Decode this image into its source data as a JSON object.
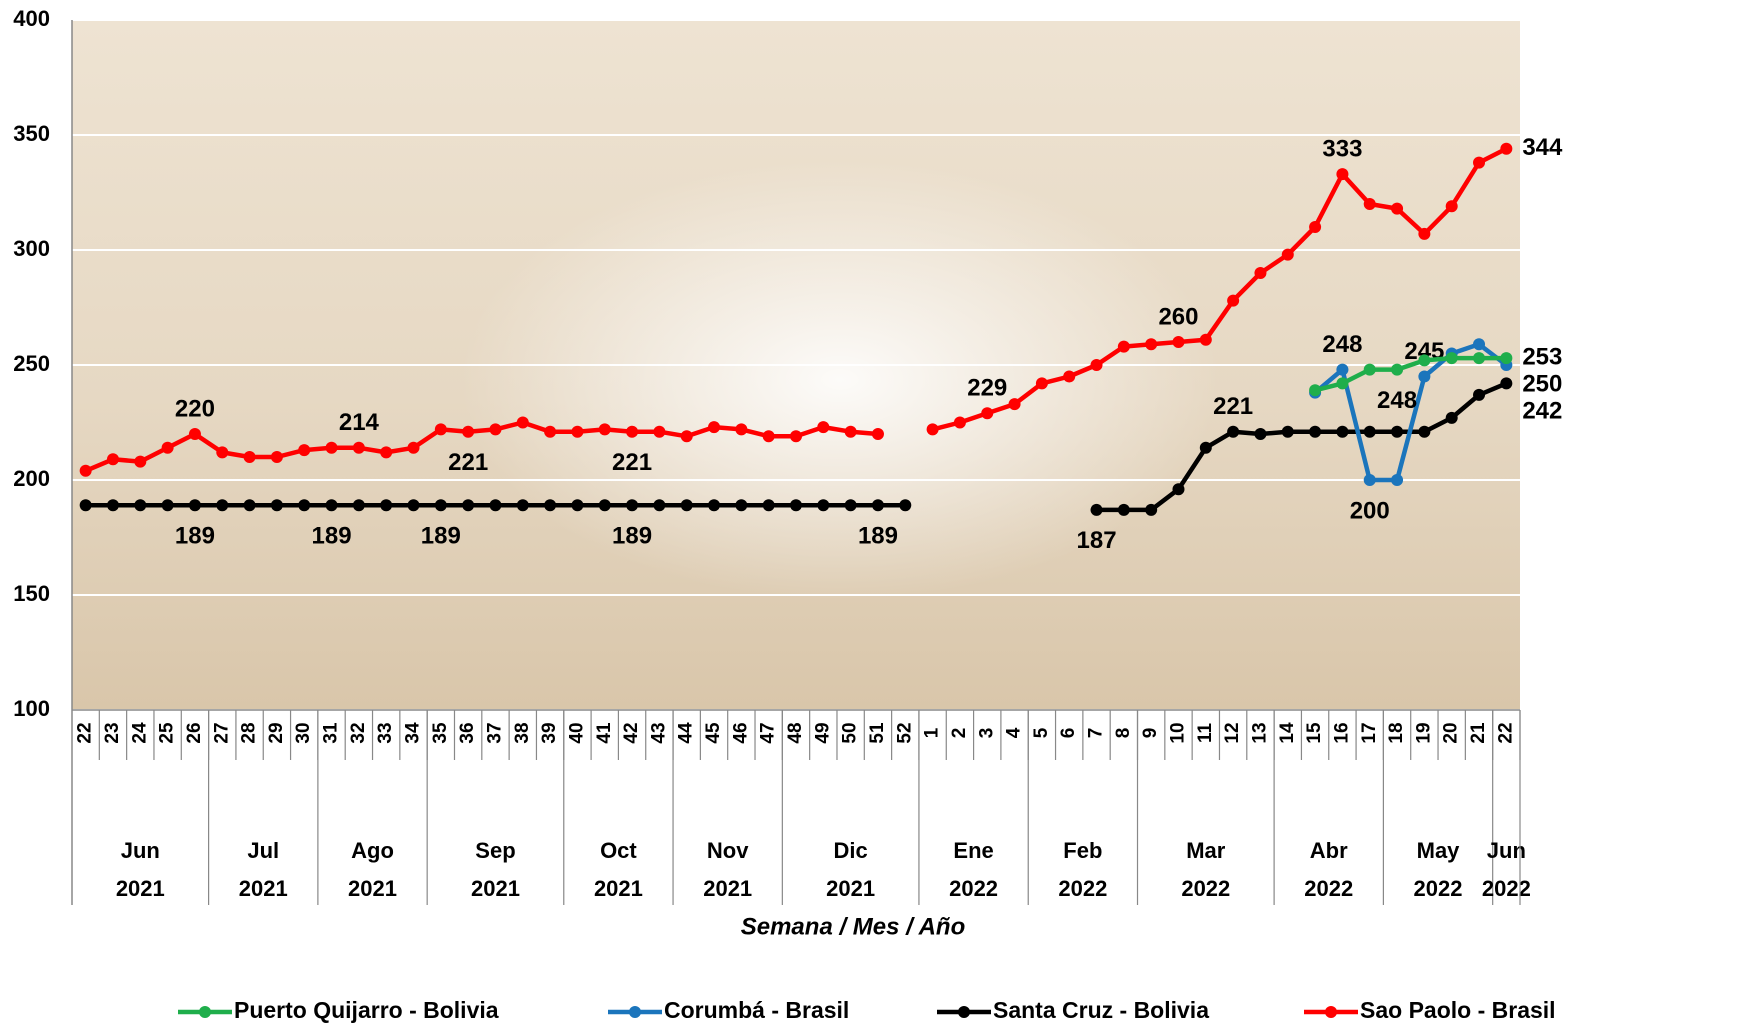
{
  "chart_data": {
    "type": "line",
    "x_label": "Semana / Mes / Año",
    "categories": [
      [
        "22",
        "Jun",
        "2021"
      ],
      [
        "23",
        "Jun",
        "2021"
      ],
      [
        "24",
        "Jun",
        "2021"
      ],
      [
        "25",
        "Jun",
        "2021"
      ],
      [
        "26",
        "Jun",
        "2021"
      ],
      [
        "27",
        "Jul",
        "2021"
      ],
      [
        "28",
        "Jul",
        "2021"
      ],
      [
        "29",
        "Jul",
        "2021"
      ],
      [
        "30",
        "Jul",
        "2021"
      ],
      [
        "31",
        "Ago",
        "2021"
      ],
      [
        "32",
        "Ago",
        "2021"
      ],
      [
        "33",
        "Ago",
        "2021"
      ],
      [
        "34",
        "Ago",
        "2021"
      ],
      [
        "35",
        "Sep",
        "2021"
      ],
      [
        "36",
        "Sep",
        "2021"
      ],
      [
        "37",
        "Sep",
        "2021"
      ],
      [
        "38",
        "Sep",
        "2021"
      ],
      [
        "39",
        "Sep",
        "2021"
      ],
      [
        "40",
        "Oct",
        "2021"
      ],
      [
        "41",
        "Oct",
        "2021"
      ],
      [
        "42",
        "Oct",
        "2021"
      ],
      [
        "43",
        "Oct",
        "2021"
      ],
      [
        "44",
        "Nov",
        "2021"
      ],
      [
        "45",
        "Nov",
        "2021"
      ],
      [
        "46",
        "Nov",
        "2021"
      ],
      [
        "47",
        "Nov",
        "2021"
      ],
      [
        "48",
        "Dic",
        "2021"
      ],
      [
        "49",
        "Dic",
        "2021"
      ],
      [
        "50",
        "Dic",
        "2021"
      ],
      [
        "51",
        "Dic",
        "2021"
      ],
      [
        "52",
        "Dic",
        "2021"
      ],
      [
        "1",
        "Ene",
        "2022"
      ],
      [
        "2",
        "Ene",
        "2022"
      ],
      [
        "3",
        "Ene",
        "2022"
      ],
      [
        "4",
        "Ene",
        "2022"
      ],
      [
        "5",
        "Feb",
        "2022"
      ],
      [
        "6",
        "Feb",
        "2022"
      ],
      [
        "7",
        "Feb",
        "2022"
      ],
      [
        "8",
        "Feb",
        "2022"
      ],
      [
        "9",
        "Mar",
        "2022"
      ],
      [
        "10",
        "Mar",
        "2022"
      ],
      [
        "11",
        "Mar",
        "2022"
      ],
      [
        "12",
        "Mar",
        "2022"
      ],
      [
        "13",
        "Mar",
        "2022"
      ],
      [
        "14",
        "Abr",
        "2022"
      ],
      [
        "15",
        "Abr",
        "2022"
      ],
      [
        "16",
        "Abr",
        "2022"
      ],
      [
        "17",
        "Abr",
        "2022"
      ],
      [
        "18",
        "May",
        "2022"
      ],
      [
        "19",
        "May",
        "2022"
      ],
      [
        "20",
        "May",
        "2022"
      ],
      [
        "21",
        "May",
        "2022"
      ],
      [
        "22",
        "Jun",
        "2022"
      ]
    ],
    "ylim": [
      100,
      400
    ],
    "yticks": [
      100,
      150,
      200,
      250,
      300,
      350,
      400
    ],
    "grid": true,
    "legend": "bottom",
    "series": [
      {
        "name": "Puerto Quijarro - Bolivia",
        "color": "#1fae4b",
        "values": [
          null,
          null,
          null,
          null,
          null,
          null,
          null,
          null,
          null,
          null,
          null,
          null,
          null,
          null,
          null,
          null,
          null,
          null,
          null,
          null,
          null,
          null,
          null,
          null,
          null,
          null,
          null,
          null,
          null,
          null,
          null,
          null,
          null,
          null,
          null,
          null,
          null,
          null,
          null,
          null,
          null,
          null,
          null,
          null,
          null,
          239,
          242,
          248,
          248,
          252,
          253,
          253,
          253
        ],
        "value_labels": [
          null,
          null,
          null,
          null,
          null,
          null,
          null,
          null,
          null,
          null,
          null,
          null,
          null,
          null,
          null,
          null,
          null,
          null,
          null,
          null,
          null,
          null,
          null,
          null,
          null,
          null,
          null,
          null,
          null,
          null,
          null,
          null,
          null,
          null,
          null,
          null,
          null,
          null,
          null,
          null,
          null,
          null,
          null,
          null,
          null,
          null,
          null,
          null,
          "248",
          null,
          null,
          null,
          "253"
        ]
      },
      {
        "name": "Corumbá - Brasil",
        "color": "#1b75bc",
        "values": [
          null,
          null,
          null,
          null,
          null,
          null,
          null,
          null,
          null,
          null,
          null,
          null,
          null,
          null,
          null,
          null,
          null,
          null,
          null,
          null,
          null,
          null,
          null,
          null,
          null,
          null,
          null,
          null,
          null,
          null,
          null,
          null,
          null,
          null,
          null,
          null,
          null,
          null,
          null,
          null,
          null,
          null,
          null,
          null,
          null,
          238,
          248,
          200,
          200,
          245,
          255,
          259,
          250
        ],
        "value_labels": [
          null,
          null,
          null,
          null,
          null,
          null,
          null,
          null,
          null,
          null,
          null,
          null,
          null,
          null,
          null,
          null,
          null,
          null,
          null,
          null,
          null,
          null,
          null,
          null,
          null,
          null,
          null,
          null,
          null,
          null,
          null,
          null,
          null,
          null,
          null,
          null,
          null,
          null,
          null,
          null,
          null,
          null,
          null,
          null,
          null,
          null,
          "248",
          "200",
          null,
          "245",
          null,
          null,
          "250"
        ]
      },
      {
        "name": "Santa Cruz - Bolivia",
        "color": "#000000",
        "values": [
          189,
          189,
          189,
          189,
          189,
          189,
          189,
          189,
          189,
          189,
          189,
          189,
          189,
          189,
          189,
          189,
          189,
          189,
          189,
          189,
          189,
          189,
          189,
          189,
          189,
          189,
          189,
          189,
          189,
          189,
          189,
          null,
          null,
          null,
          null,
          null,
          null,
          187,
          187,
          187,
          196,
          214,
          221,
          220,
          221,
          221,
          221,
          221,
          221,
          221,
          227,
          237,
          242
        ],
        "value_labels": [
          null,
          null,
          null,
          null,
          "189",
          null,
          null,
          null,
          null,
          "189",
          null,
          null,
          null,
          "189",
          null,
          null,
          null,
          null,
          null,
          null,
          "189",
          null,
          null,
          null,
          null,
          null,
          null,
          null,
          null,
          "189",
          null,
          null,
          null,
          null,
          null,
          null,
          null,
          "187",
          null,
          null,
          null,
          null,
          "221",
          null,
          null,
          null,
          null,
          null,
          null,
          null,
          null,
          null,
          "242"
        ]
      },
      {
        "name": "Sao Paolo - Brasil",
        "color": "#ff0000",
        "values": [
          204,
          209,
          208,
          214,
          220,
          212,
          210,
          210,
          213,
          214,
          214,
          212,
          214,
          222,
          221,
          222,
          225,
          221,
          221,
          222,
          221,
          221,
          219,
          223,
          222,
          219,
          219,
          223,
          221,
          220,
          null,
          222,
          225,
          229,
          233,
          242,
          245,
          250,
          258,
          259,
          260,
          261,
          278,
          290,
          298,
          310,
          333,
          320,
          318,
          307,
          319,
          338,
          344
        ],
        "value_labels": [
          null,
          null,
          null,
          null,
          "220",
          null,
          null,
          null,
          null,
          null,
          "214",
          null,
          null,
          null,
          "221",
          null,
          null,
          null,
          null,
          null,
          "221",
          null,
          null,
          null,
          null,
          null,
          null,
          null,
          null,
          null,
          null,
          null,
          null,
          "229",
          null,
          null,
          null,
          null,
          null,
          null,
          "260",
          null,
          null,
          null,
          null,
          null,
          "333",
          null,
          null,
          null,
          null,
          null,
          "344"
        ]
      }
    ]
  }
}
